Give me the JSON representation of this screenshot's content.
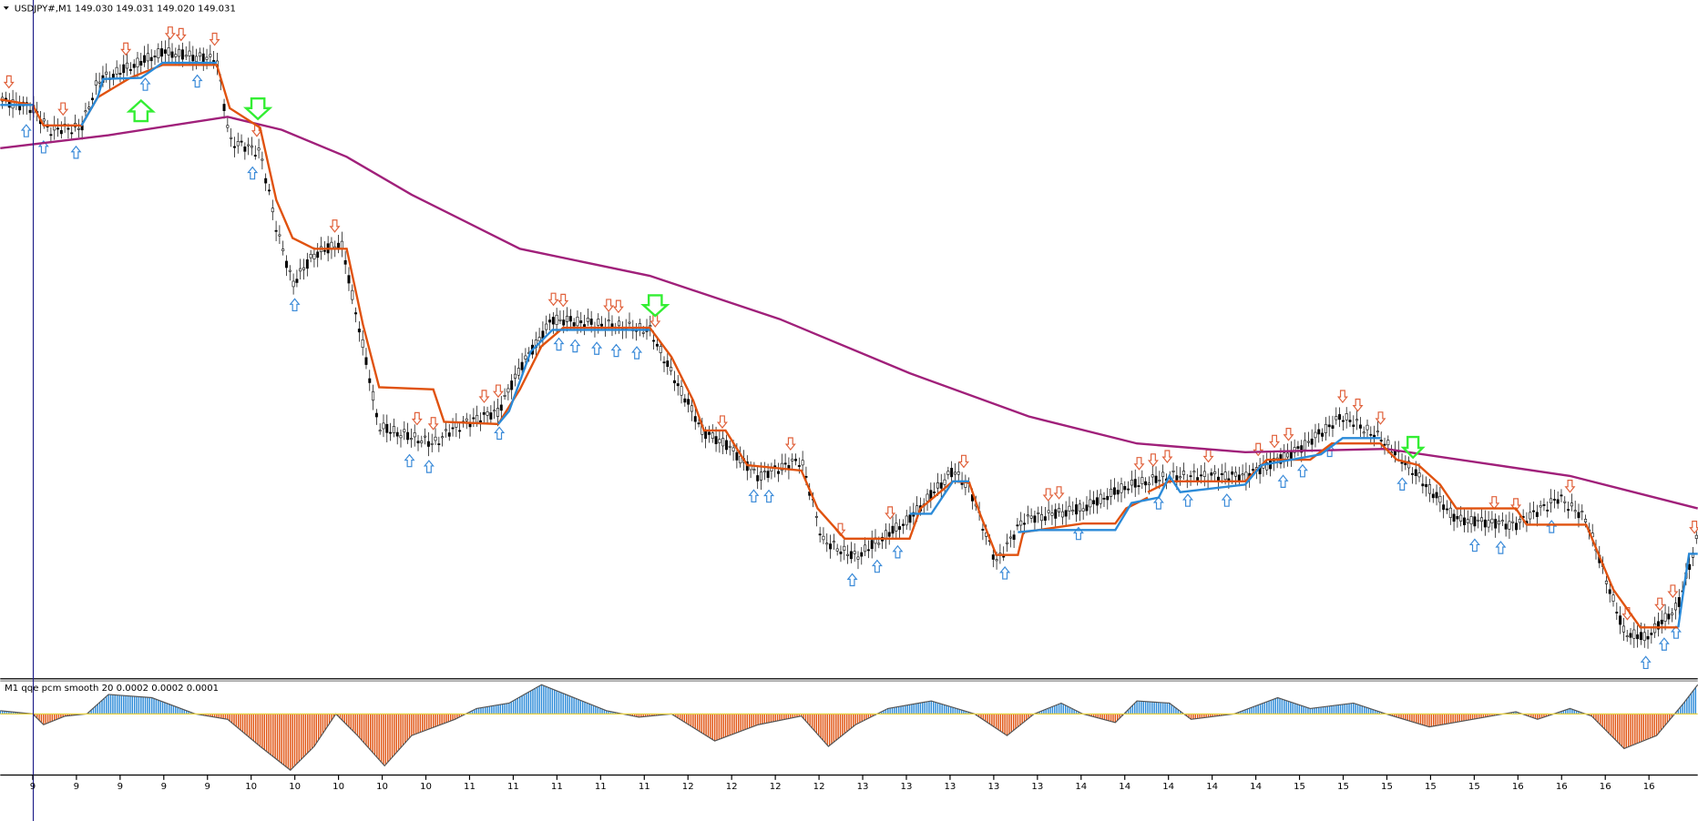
{
  "header": {
    "symbol_label": "USDJPY#,M1  149.030 149.031 149.020 149.031"
  },
  "indicator": {
    "label": "M1  qqe pcm smooth  20 0.0002 0.0002 0.0001"
  },
  "time_axis": {
    "labels": [
      "9",
      "9",
      "9",
      "9",
      "9",
      "10",
      "10",
      "10",
      "10",
      "10",
      "11",
      "11",
      "11",
      "11",
      "11",
      "12",
      "12",
      "12",
      "12",
      "13",
      "13",
      "13",
      "13",
      "13",
      "14",
      "14",
      "14",
      "14",
      "14",
      "15",
      "15",
      "15",
      "15",
      "15",
      "16",
      "16",
      "16",
      "16"
    ]
  }
}
